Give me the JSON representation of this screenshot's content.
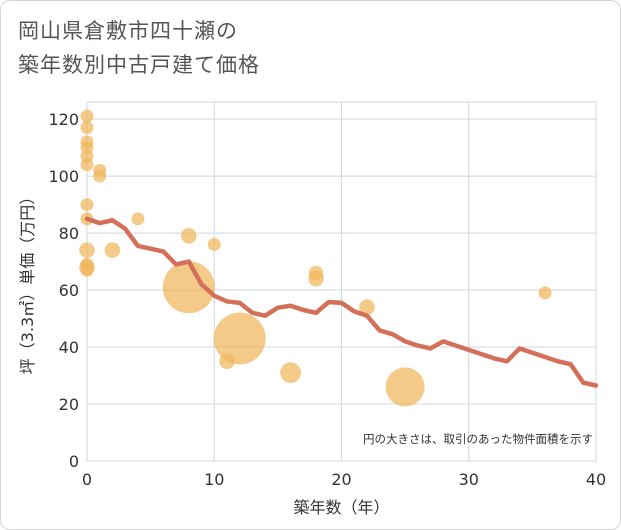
{
  "title_line1": "岡山県倉敷市四十瀬の",
  "title_line2": "築年数別中古戸建て価格",
  "colors": {
    "line": "#d4705a",
    "bubble": "#f0b65a",
    "grid": "#cdd8e0",
    "plot_bg": "#ffffff"
  },
  "chart_data": {
    "type": "scatter",
    "xlabel": "築年数（年）",
    "ylabel": "坪（3.3㎡）単価（万円）",
    "xlim": [
      0,
      40
    ],
    "ylim": [
      0,
      126
    ],
    "x_ticks": [
      0,
      10,
      20,
      30,
      40
    ],
    "y_ticks": [
      0,
      20,
      40,
      60,
      80,
      100,
      120
    ],
    "grid": true,
    "note": "円の大きさは、取引のあった物件面積を示す",
    "scatter": [
      {
        "x": 0,
        "y": 121,
        "size": 1
      },
      {
        "x": 0,
        "y": 117,
        "size": 1
      },
      {
        "x": 0,
        "y": 112,
        "size": 1
      },
      {
        "x": 0,
        "y": 110,
        "size": 1
      },
      {
        "x": 0,
        "y": 107,
        "size": 1
      },
      {
        "x": 0,
        "y": 104,
        "size": 1
      },
      {
        "x": 0,
        "y": 90,
        "size": 1
      },
      {
        "x": 0,
        "y": 85,
        "size": 1
      },
      {
        "x": 0,
        "y": 74,
        "size": 1.2
      },
      {
        "x": 0,
        "y": 69,
        "size": 1
      },
      {
        "x": 0,
        "y": 68,
        "size": 1.2
      },
      {
        "x": 0,
        "y": 67,
        "size": 1
      },
      {
        "x": 1,
        "y": 102,
        "size": 1
      },
      {
        "x": 1,
        "y": 100,
        "size": 1
      },
      {
        "x": 2,
        "y": 74,
        "size": 1.2
      },
      {
        "x": 4,
        "y": 85,
        "size": 1
      },
      {
        "x": 8,
        "y": 79,
        "size": 1.2
      },
      {
        "x": 8,
        "y": 61,
        "size": 4
      },
      {
        "x": 10,
        "y": 76,
        "size": 1
      },
      {
        "x": 11,
        "y": 35,
        "size": 1.2
      },
      {
        "x": 12,
        "y": 43,
        "size": 4
      },
      {
        "x": 16,
        "y": 31,
        "size": 1.6
      },
      {
        "x": 18,
        "y": 66,
        "size": 1.1
      },
      {
        "x": 18,
        "y": 64,
        "size": 1.2
      },
      {
        "x": 22,
        "y": 54,
        "size": 1.2
      },
      {
        "x": 25,
        "y": 26,
        "size": 3
      },
      {
        "x": 36,
        "y": 59,
        "size": 1
      }
    ],
    "line": {
      "x": [
        0,
        1,
        2,
        3,
        4,
        5,
        6,
        7,
        8,
        9,
        10,
        11,
        12,
        13,
        14,
        15,
        16,
        17,
        18,
        19,
        20,
        21,
        22,
        23,
        24,
        25,
        26,
        27,
        28,
        29,
        30,
        31,
        32,
        33,
        34,
        35,
        36,
        37,
        38,
        39,
        40
      ],
      "y": [
        85,
        83.5,
        84.5,
        81.5,
        75.5,
        74.5,
        73.5,
        69,
        70,
        62,
        58,
        56,
        55.5,
        52,
        51,
        53.8,
        54.5,
        53,
        52,
        55.8,
        55.5,
        52.5,
        51,
        45.8,
        44.5,
        42,
        40.5,
        39.5,
        42,
        40.5,
        39,
        37.5,
        36,
        35,
        39.5,
        38,
        36.5,
        35,
        34,
        27.5,
        26.5
      ]
    }
  }
}
